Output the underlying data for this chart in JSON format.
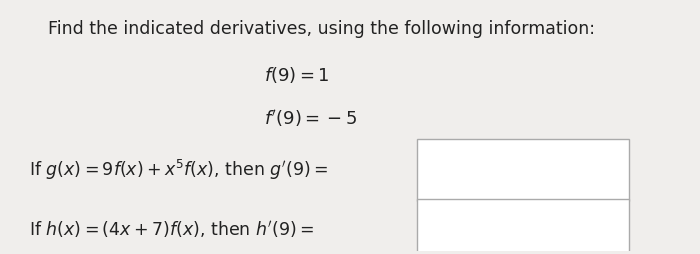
{
  "background_color": "#f0eeec",
  "title_text": "Find the indicated derivatives, using the following information:",
  "info_line1": "$f(9) = 1$",
  "info_line2": "$f'(9) = -5$",
  "question1_text": "If $g(x) = 9f(x) + x^5f(x)$, then $g'(9) =$",
  "question2_text": "If $h(x) = (4x + 7)f(x)$, then $h'(9) =$",
  "title_fontsize": 12.5,
  "info_fontsize": 13,
  "question_fontsize": 12.5,
  "box_facecolor": "#ffffff",
  "box_edgecolor": "#aaaaaa",
  "text_color": "#222222"
}
